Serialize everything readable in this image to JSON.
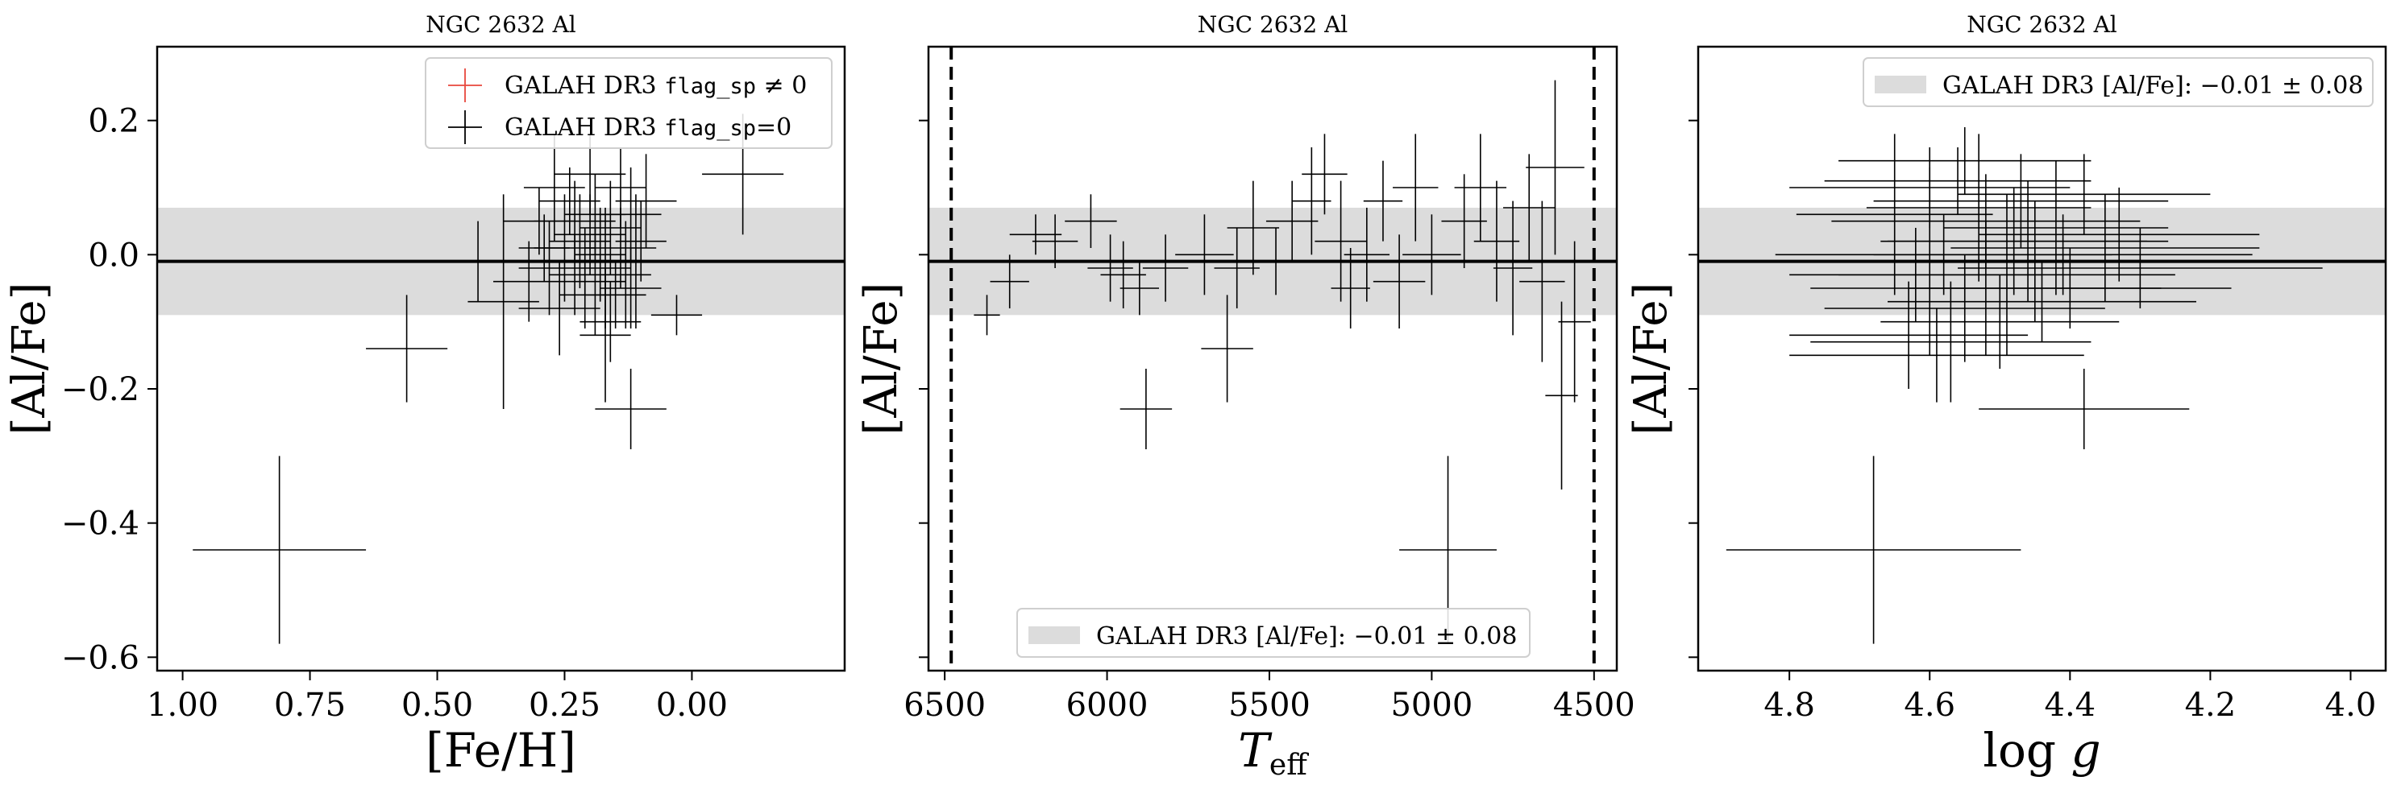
{
  "colors": {
    "flagged": "#e8473c",
    "normal": "#000000",
    "band": "#dcdcdc",
    "mean_line": "#000000"
  },
  "chart_data": [
    {
      "type": "scatter",
      "title": "NGC 2632 Al",
      "xlabel": "[Fe/H]",
      "ylabel": "[Al/Fe]",
      "xlim": [
        1.05,
        -0.3
      ],
      "ylim": [
        -0.62,
        0.31
      ],
      "xticks": [
        1.0,
        0.75,
        0.5,
        0.25,
        0.0
      ],
      "xtick_labels": [
        "1.00",
        "0.75",
        "0.50",
        "0.25",
        "0.00"
      ],
      "yticks": [
        0.2,
        0.0,
        -0.2,
        -0.4,
        -0.6
      ],
      "ytick_labels": [
        "0.2",
        "0.0",
        "−0.2",
        "−0.4",
        "−0.6"
      ],
      "grid": false,
      "band": {
        "mean": -0.01,
        "sigma": 0.08
      },
      "legend": {
        "placement": "upper right",
        "entries": [
          {
            "label_prefix": "GALAH DR3 ",
            "label_code": "flag_sp",
            "label_suffix": " ≠ 0",
            "color": "#e8473c"
          },
          {
            "label_prefix": "GALAH DR3 ",
            "label_code": "flag_sp",
            "label_suffix": "=0",
            "color": "#000000"
          }
        ]
      },
      "series": [
        {
          "flagged": false,
          "points": [
            {
              "x": 0.81,
              "y": -0.44,
              "xerr": 0.17,
              "yerr": 0.14
            },
            {
              "x": 0.56,
              "y": -0.14,
              "xerr": 0.08,
              "yerr": 0.08
            },
            {
              "x": 0.12,
              "y": -0.23,
              "xerr": 0.07,
              "yerr": 0.06
            },
            {
              "x": -0.1,
              "y": 0.12,
              "xerr": 0.08,
              "yerr": 0.09
            },
            {
              "x": 0.37,
              "y": -0.07,
              "xerr": 0.07,
              "yerr": 0.16
            },
            {
              "x": 0.42,
              "y": -0.01,
              "xerr": 0.08,
              "yerr": 0.06
            },
            {
              "x": 0.3,
              "y": 0.05,
              "xerr": 0.07,
              "yerr": 0.05
            },
            {
              "x": 0.28,
              "y": -0.02,
              "xerr": 0.06,
              "yerr": 0.07
            },
            {
              "x": 0.25,
              "y": 0.01,
              "xerr": 0.06,
              "yerr": 0.08
            },
            {
              "x": 0.23,
              "y": -0.03,
              "xerr": 0.05,
              "yerr": 0.06
            },
            {
              "x": 0.22,
              "y": 0.02,
              "xerr": 0.06,
              "yerr": 0.07
            },
            {
              "x": 0.21,
              "y": -0.01,
              "xerr": 0.05,
              "yerr": 0.05
            },
            {
              "x": 0.2,
              "y": 0.03,
              "xerr": 0.07,
              "yerr": 0.06
            },
            {
              "x": 0.19,
              "y": -0.04,
              "xerr": 0.06,
              "yerr": 0.08
            },
            {
              "x": 0.18,
              "y": 0.0,
              "xerr": 0.05,
              "yerr": 0.07
            },
            {
              "x": 0.17,
              "y": -0.02,
              "xerr": 0.05,
              "yerr": 0.09
            },
            {
              "x": 0.16,
              "y": 0.04,
              "xerr": 0.06,
              "yerr": 0.07
            },
            {
              "x": 0.15,
              "y": -0.06,
              "xerr": 0.06,
              "yerr": 0.05
            },
            {
              "x": 0.14,
              "y": 0.01,
              "xerr": 0.07,
              "yerr": 0.06
            },
            {
              "x": 0.13,
              "y": -0.03,
              "xerr": 0.05,
              "yerr": 0.08
            },
            {
              "x": 0.12,
              "y": 0.06,
              "xerr": 0.06,
              "yerr": 0.07
            },
            {
              "x": 0.11,
              "y": -0.01,
              "xerr": 0.06,
              "yerr": 0.1
            },
            {
              "x": 0.1,
              "y": 0.02,
              "xerr": 0.05,
              "yerr": 0.06
            },
            {
              "x": 0.24,
              "y": 0.08,
              "xerr": 0.06,
              "yerr": 0.05
            },
            {
              "x": 0.2,
              "y": 0.12,
              "xerr": 0.07,
              "yerr": 0.06
            },
            {
              "x": 0.26,
              "y": -0.08,
              "xerr": 0.08,
              "yerr": 0.07
            },
            {
              "x": 0.16,
              "y": -0.1,
              "xerr": 0.06,
              "yerr": 0.06
            },
            {
              "x": 0.32,
              "y": -0.04,
              "xerr": 0.07,
              "yerr": 0.06
            },
            {
              "x": 0.09,
              "y": 0.08,
              "xerr": 0.06,
              "yerr": 0.07
            },
            {
              "x": 0.27,
              "y": 0.1,
              "xerr": 0.06,
              "yerr": 0.08
            },
            {
              "x": 0.14,
              "y": 0.1,
              "xerr": 0.05,
              "yerr": 0.06
            },
            {
              "x": 0.21,
              "y": -0.06,
              "xerr": 0.05,
              "yerr": 0.05
            },
            {
              "x": 0.17,
              "y": -0.12,
              "xerr": 0.05,
              "yerr": 0.1
            },
            {
              "x": 0.03,
              "y": -0.09,
              "xerr": 0.05,
              "yerr": 0.03
            },
            {
              "x": 0.23,
              "y": 0.05,
              "xerr": 0.08,
              "yerr": 0.06
            },
            {
              "x": 0.19,
              "y": 0.06,
              "xerr": 0.06,
              "yerr": 0.06
            },
            {
              "x": 0.12,
              "y": -0.05,
              "xerr": 0.06,
              "yerr": 0.06
            },
            {
              "x": 0.29,
              "y": 0.01,
              "xerr": 0.05,
              "yerr": 0.05
            }
          ]
        }
      ]
    },
    {
      "type": "scatter",
      "title": "NGC 2632 Al",
      "xlabel_main": "T",
      "xlabel_sub": "eff",
      "ylabel": "[Al/Fe]",
      "xlim": [
        6550,
        4430
      ],
      "ylim": [
        -0.62,
        0.31
      ],
      "xticks": [
        6500,
        6000,
        5500,
        5000,
        4500
      ],
      "xtick_labels": [
        "6500",
        "6000",
        "5500",
        "5000",
        "4500"
      ],
      "yticks": [
        0.2,
        0.0,
        -0.2,
        -0.4,
        -0.6
      ],
      "ytick_labels": [
        "",
        "",
        "",
        "",
        ""
      ],
      "grid": false,
      "vlines": [
        6480,
        4500
      ],
      "band": {
        "mean": -0.01,
        "sigma": 0.08
      },
      "legend": {
        "placement": "lower center",
        "entries": [
          {
            "label_prefix": "GALAH DR3 [Al/Fe]:  ",
            "label_code": "",
            "label_suffix": "−0.01 ± 0.08",
            "color": "#dcdcdc",
            "patch": true
          }
        ]
      },
      "series": [
        {
          "flagged": false,
          "points": [
            {
              "x": 6370,
              "y": -0.09,
              "xerr": 40,
              "yerr": 0.03
            },
            {
              "x": 6300,
              "y": -0.04,
              "xerr": 60,
              "yerr": 0.04
            },
            {
              "x": 6220,
              "y": 0.03,
              "xerr": 80,
              "yerr": 0.03
            },
            {
              "x": 6160,
              "y": 0.02,
              "xerr": 70,
              "yerr": 0.04
            },
            {
              "x": 6050,
              "y": 0.05,
              "xerr": 80,
              "yerr": 0.04
            },
            {
              "x": 5990,
              "y": -0.02,
              "xerr": 70,
              "yerr": 0.05
            },
            {
              "x": 5950,
              "y": -0.03,
              "xerr": 70,
              "yerr": 0.05
            },
            {
              "x": 5900,
              "y": -0.05,
              "xerr": 60,
              "yerr": 0.04
            },
            {
              "x": 5880,
              "y": -0.23,
              "xerr": 80,
              "yerr": 0.06
            },
            {
              "x": 5820,
              "y": -0.02,
              "xerr": 70,
              "yerr": 0.05
            },
            {
              "x": 5700,
              "y": 0.0,
              "xerr": 90,
              "yerr": 0.06
            },
            {
              "x": 5630,
              "y": -0.14,
              "xerr": 80,
              "yerr": 0.08
            },
            {
              "x": 5600,
              "y": -0.02,
              "xerr": 70,
              "yerr": 0.06
            },
            {
              "x": 5550,
              "y": 0.04,
              "xerr": 80,
              "yerr": 0.07
            },
            {
              "x": 5480,
              "y": -0.01,
              "xerr": 70,
              "yerr": 0.05
            },
            {
              "x": 5430,
              "y": 0.05,
              "xerr": 80,
              "yerr": 0.06
            },
            {
              "x": 5370,
              "y": 0.08,
              "xerr": 60,
              "yerr": 0.08
            },
            {
              "x": 5330,
              "y": 0.12,
              "xerr": 70,
              "yerr": 0.06
            },
            {
              "x": 5280,
              "y": 0.02,
              "xerr": 80,
              "yerr": 0.09
            },
            {
              "x": 5200,
              "y": 0.0,
              "xerr": 70,
              "yerr": 0.07
            },
            {
              "x": 5150,
              "y": 0.08,
              "xerr": 60,
              "yerr": 0.06
            },
            {
              "x": 5100,
              "y": -0.04,
              "xerr": 80,
              "yerr": 0.07
            },
            {
              "x": 5050,
              "y": 0.1,
              "xerr": 70,
              "yerr": 0.08
            },
            {
              "x": 5000,
              "y": 0.0,
              "xerr": 90,
              "yerr": 0.06
            },
            {
              "x": 4950,
              "y": -0.44,
              "xerr": 150,
              "yerr": 0.14
            },
            {
              "x": 4900,
              "y": 0.05,
              "xerr": 70,
              "yerr": 0.07
            },
            {
              "x": 4850,
              "y": 0.1,
              "xerr": 80,
              "yerr": 0.08
            },
            {
              "x": 4800,
              "y": 0.02,
              "xerr": 70,
              "yerr": 0.09
            },
            {
              "x": 4750,
              "y": -0.02,
              "xerr": 60,
              "yerr": 0.1
            },
            {
              "x": 4700,
              "y": 0.07,
              "xerr": 80,
              "yerr": 0.08
            },
            {
              "x": 4660,
              "y": -0.04,
              "xerr": 70,
              "yerr": 0.12
            },
            {
              "x": 4620,
              "y": 0.13,
              "xerr": 90,
              "yerr": 0.13
            },
            {
              "x": 4600,
              "y": -0.21,
              "xerr": 50,
              "yerr": 0.14
            },
            {
              "x": 4560,
              "y": -0.1,
              "xerr": 50,
              "yerr": 0.12
            },
            {
              "x": 5250,
              "y": -0.05,
              "xerr": 60,
              "yerr": 0.06
            }
          ]
        }
      ]
    },
    {
      "type": "scatter",
      "title": "NGC 2632 Al",
      "xlabel": "log g",
      "ylabel": "[Al/Fe]",
      "xlim": [
        4.93,
        3.95
      ],
      "ylim": [
        -0.62,
        0.31
      ],
      "xticks": [
        4.8,
        4.6,
        4.4,
        4.2,
        4.0
      ],
      "xtick_labels": [
        "4.8",
        "4.6",
        "4.4",
        "4.2",
        "4.0"
      ],
      "yticks": [
        0.2,
        0.0,
        -0.2,
        -0.4,
        -0.6
      ],
      "ytick_labels": [
        "",
        "",
        "",
        "",
        ""
      ],
      "grid": false,
      "band": {
        "mean": -0.01,
        "sigma": 0.08
      },
      "legend": {
        "placement": "upper right",
        "entries": [
          {
            "label_prefix": "GALAH DR3 [Al/Fe]:  ",
            "label_code": "",
            "label_suffix": "−0.01 ± 0.08",
            "color": "#dcdcdc",
            "patch": true
          }
        ]
      },
      "series": [
        {
          "flagged": false,
          "points": [
            {
              "x": 4.68,
              "y": -0.44,
              "xerr": 0.21,
              "yerr": 0.14
            },
            {
              "x": 4.38,
              "y": -0.23,
              "xerr": 0.15,
              "yerr": 0.06
            },
            {
              "x": 4.55,
              "y": 0.14,
              "xerr": 0.18,
              "yerr": 0.05
            },
            {
              "x": 4.6,
              "y": 0.1,
              "xerr": 0.2,
              "yerr": 0.06
            },
            {
              "x": 4.52,
              "y": 0.05,
              "xerr": 0.22,
              "yerr": 0.07
            },
            {
              "x": 4.48,
              "y": 0.02,
              "xerr": 0.19,
              "yerr": 0.08
            },
            {
              "x": 4.58,
              "y": 0.0,
              "xerr": 0.24,
              "yerr": 0.06
            },
            {
              "x": 4.45,
              "y": -0.01,
              "xerr": 0.21,
              "yerr": 0.09
            },
            {
              "x": 4.62,
              "y": -0.03,
              "xerr": 0.18,
              "yerr": 0.07
            },
            {
              "x": 4.4,
              "y": -0.05,
              "xerr": 0.23,
              "yerr": 0.06
            },
            {
              "x": 4.55,
              "y": -0.08,
              "xerr": 0.2,
              "yerr": 0.08
            },
            {
              "x": 4.5,
              "y": -0.1,
              "xerr": 0.17,
              "yerr": 0.07
            },
            {
              "x": 4.42,
              "y": 0.04,
              "xerr": 0.16,
              "yerr": 0.1
            },
            {
              "x": 4.35,
              "y": 0.01,
              "xerr": 0.22,
              "yerr": 0.08
            },
            {
              "x": 4.65,
              "y": 0.06,
              "xerr": 0.14,
              "yerr": 0.12
            },
            {
              "x": 4.3,
              "y": -0.02,
              "xerr": 0.26,
              "yerr": 0.06
            },
            {
              "x": 4.57,
              "y": -0.13,
              "xerr": 0.2,
              "yerr": 0.09
            },
            {
              "x": 4.47,
              "y": 0.08,
              "xerr": 0.21,
              "yerr": 0.07
            },
            {
              "x": 4.52,
              "y": -0.05,
              "xerr": 0.25,
              "yerr": 0.1
            },
            {
              "x": 4.6,
              "y": -0.01,
              "xerr": 0.19,
              "yerr": 0.14
            },
            {
              "x": 4.38,
              "y": 0.09,
              "xerr": 0.18,
              "yerr": 0.06
            },
            {
              "x": 4.44,
              "y": -0.07,
              "xerr": 0.22,
              "yerr": 0.06
            },
            {
              "x": 4.63,
              "y": -0.12,
              "xerr": 0.17,
              "yerr": 0.08
            },
            {
              "x": 4.33,
              "y": 0.03,
              "xerr": 0.2,
              "yerr": 0.07
            },
            {
              "x": 4.56,
              "y": 0.11,
              "xerr": 0.19,
              "yerr": 0.05
            },
            {
              "x": 4.49,
              "y": -0.03,
              "xerr": 0.24,
              "yerr": 0.12
            },
            {
              "x": 4.41,
              "y": 0.0,
              "xerr": 0.27,
              "yerr": 0.06
            },
            {
              "x": 4.53,
              "y": 0.07,
              "xerr": 0.16,
              "yerr": 0.11
            },
            {
              "x": 4.59,
              "y": -0.15,
              "xerr": 0.21,
              "yerr": 0.07
            },
            {
              "x": 4.46,
              "y": 0.02,
              "xerr": 0.2,
              "yerr": 0.09
            }
          ]
        }
      ]
    }
  ]
}
